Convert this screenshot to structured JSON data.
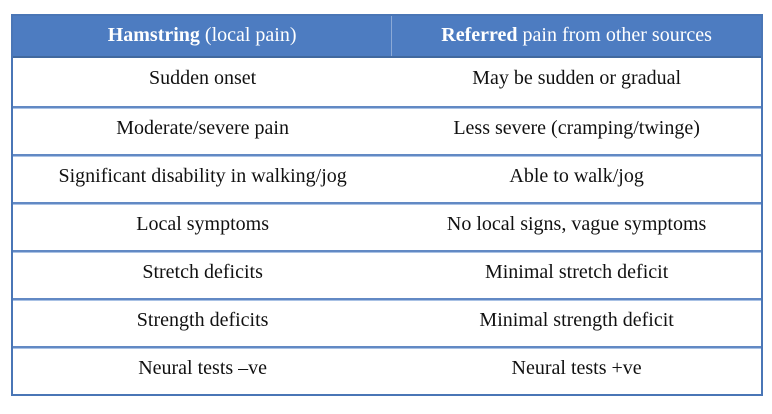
{
  "table": {
    "header": {
      "left": {
        "bold": "Hamstring",
        "rest": " (local pain)"
      },
      "right": {
        "bold": "Referred",
        "rest": " pain from other sources"
      }
    },
    "rows": [
      {
        "left": "Sudden onset",
        "right": "May be sudden or gradual"
      },
      {
        "left": "Moderate/severe pain",
        "right": "Less severe (cramping/twinge)"
      },
      {
        "left": "Significant disability in walking/jog",
        "right": "Able to walk/jog"
      },
      {
        "left": "Local symptoms",
        "right": "No local signs, vague symptoms"
      },
      {
        "left": "Stretch deficits",
        "right": "Minimal stretch deficit"
      },
      {
        "left": "Strength deficits",
        "right": "Minimal strength deficit"
      },
      {
        "left": "Neural tests –ve",
        "right": "Neural tests +ve"
      }
    ],
    "colors": {
      "header_bg": "#4d7cc1",
      "header_text": "#ffffff",
      "outer_border": "#4a76b6",
      "row_separator": "#6289c4",
      "row_separator_light": "#aac2e5",
      "body_text": "#111111"
    }
  }
}
